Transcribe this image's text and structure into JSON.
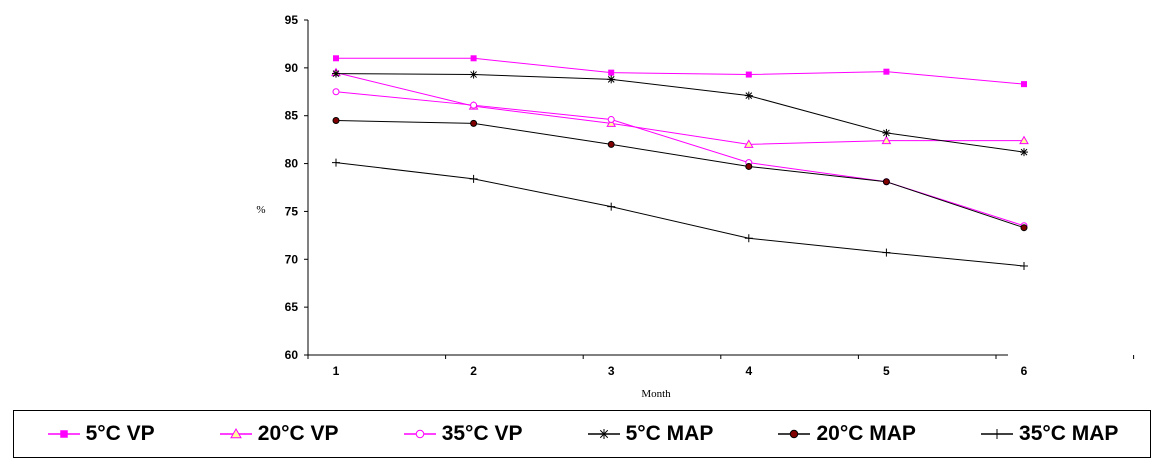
{
  "chart_data": {
    "type": "line",
    "xlabel": "Month",
    "ylabel": "%",
    "x": [
      1,
      2,
      3,
      4,
      5,
      6
    ],
    "ylim": [
      60,
      95
    ],
    "yticks": [
      60,
      65,
      70,
      75,
      80,
      85,
      90,
      95
    ],
    "grid": false,
    "legend_position": "bottom",
    "series": [
      {
        "name": "5°C VP",
        "values": [
          91.0,
          91.0,
          89.5,
          89.3,
          89.6,
          88.3
        ],
        "color": "#ff00ff",
        "marker": "square"
      },
      {
        "name": "20°C VP",
        "values": [
          89.5,
          86.0,
          84.2,
          82.0,
          82.4,
          82.4
        ],
        "color": "#ff00ff",
        "marker": "triangle"
      },
      {
        "name": "35°C VP",
        "values": [
          87.5,
          86.1,
          84.6,
          80.1,
          78.1,
          73.5
        ],
        "color": "#ff00ff",
        "marker": "circle-open"
      },
      {
        "name": "5°C MAP",
        "values": [
          89.4,
          89.3,
          88.8,
          87.1,
          83.2,
          81.2
        ],
        "color": "#000000",
        "marker": "asterisk"
      },
      {
        "name": "20°C MAP",
        "values": [
          84.5,
          84.2,
          82.0,
          79.7,
          78.1,
          73.3
        ],
        "color": "#000000",
        "marker": "circle-filled"
      },
      {
        "name": "35°C MAP",
        "values": [
          80.1,
          78.4,
          75.5,
          72.2,
          70.7,
          69.3
        ],
        "color": "#000000",
        "marker": "plus"
      }
    ]
  }
}
